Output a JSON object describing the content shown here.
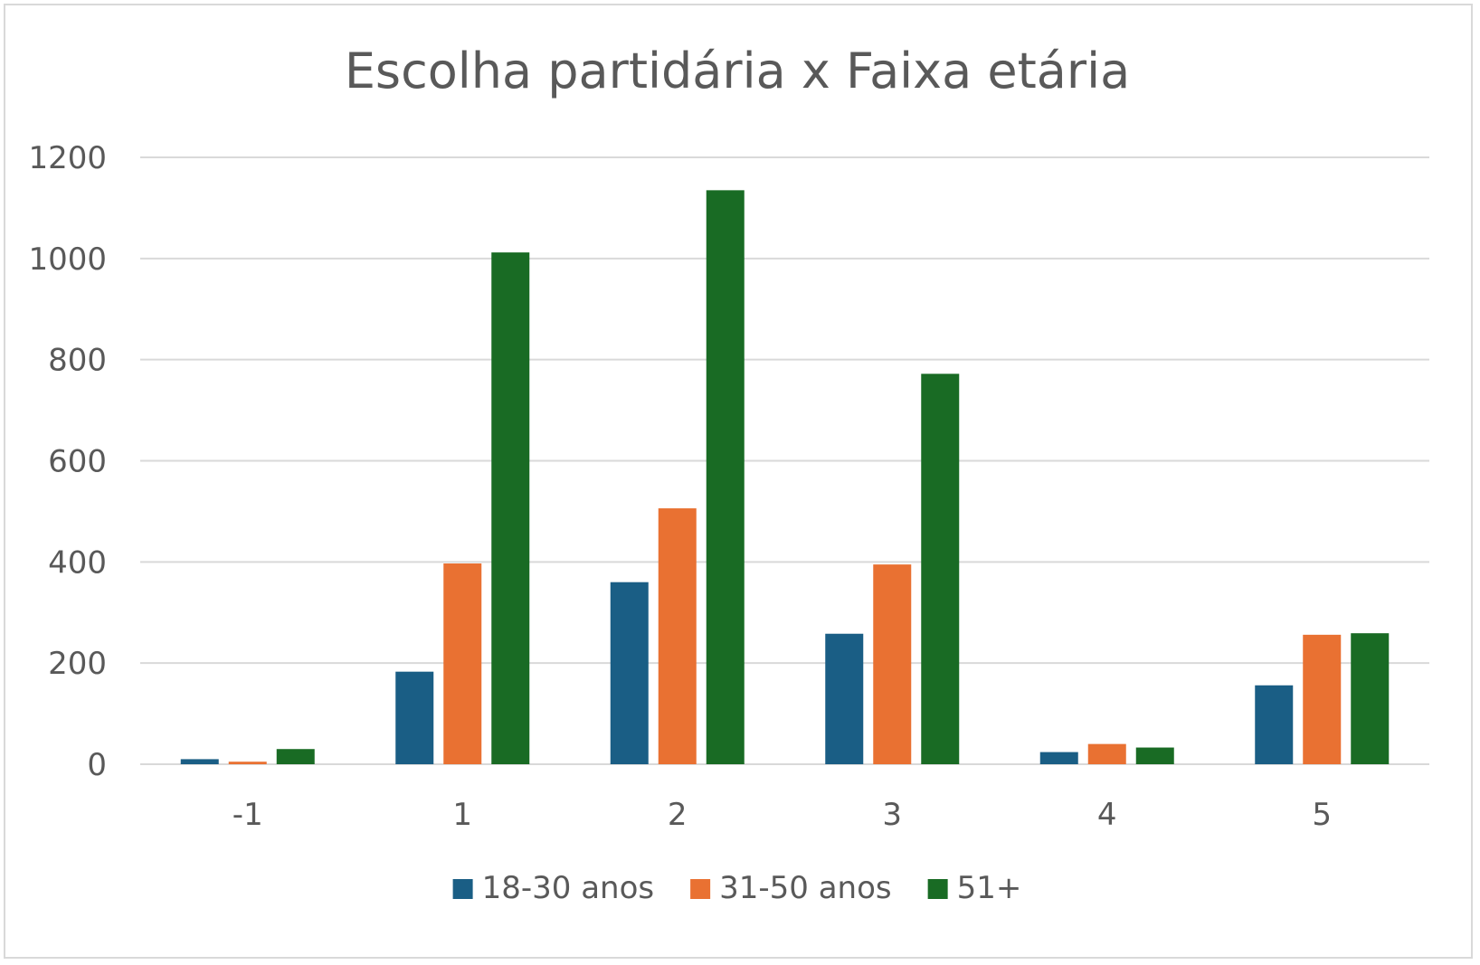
{
  "chart_data": {
    "type": "bar",
    "title": "Escolha partidária x Faixa etária",
    "xlabel": "",
    "ylabel": "",
    "categories": [
      "-1",
      "1",
      "2",
      "3",
      "4",
      "5"
    ],
    "series": [
      {
        "name": "18-30 anos",
        "color": "#1a5e85",
        "values": [
          10,
          183,
          360,
          258,
          24,
          156
        ]
      },
      {
        "name": "31-50 anos",
        "color": "#e97132",
        "values": [
          5,
          397,
          506,
          395,
          40,
          256
        ]
      },
      {
        "name": "51+",
        "color": "#196b24",
        "values": [
          30,
          1012,
          1135,
          772,
          33,
          259
        ]
      }
    ],
    "ylim": [
      0,
      1200
    ],
    "yticks": [
      0,
      200,
      400,
      600,
      800,
      1000,
      1200
    ],
    "grid": true,
    "legend_position": "bottom"
  }
}
